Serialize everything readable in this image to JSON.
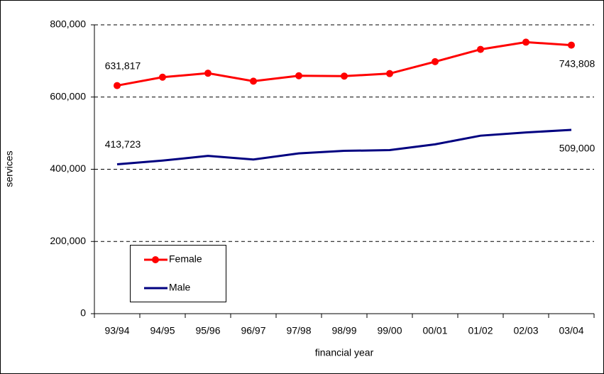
{
  "chart_data": {
    "type": "line",
    "x_label": "financial year",
    "y_label": "services",
    "categories": [
      "93/94",
      "94/95",
      "95/96",
      "96/97",
      "97/98",
      "98/99",
      "99/00",
      "00/01",
      "01/02",
      "02/03",
      "03/04"
    ],
    "series": [
      {
        "name": "Female",
        "color": "#ff0000",
        "marker": "circle",
        "values": [
          631817,
          655000,
          666000,
          644000,
          659000,
          658000,
          665000,
          698000,
          732000,
          752000,
          743808
        ],
        "value_labels": [
          "631,817",
          null,
          null,
          null,
          null,
          null,
          null,
          null,
          null,
          null,
          "743,808"
        ]
      },
      {
        "name": "Male",
        "color": "#000080",
        "values": [
          413723,
          424000,
          437000,
          427000,
          444000,
          451000,
          453000,
          469000,
          493000,
          502000,
          509000
        ],
        "value_labels": [
          "413,723",
          null,
          null,
          null,
          null,
          null,
          null,
          null,
          null,
          null,
          "509,000"
        ]
      }
    ],
    "ylim": [
      0,
      800000
    ],
    "yticks": [
      0,
      {
        "value": 200000,
        "label": "200,000"
      },
      {
        "value": 400000,
        "label": "400,000"
      },
      {
        "value": 600000,
        "label": "600,000"
      },
      {
        "value": 800000,
        "label": "800,000"
      }
    ],
    "grid": true
  }
}
